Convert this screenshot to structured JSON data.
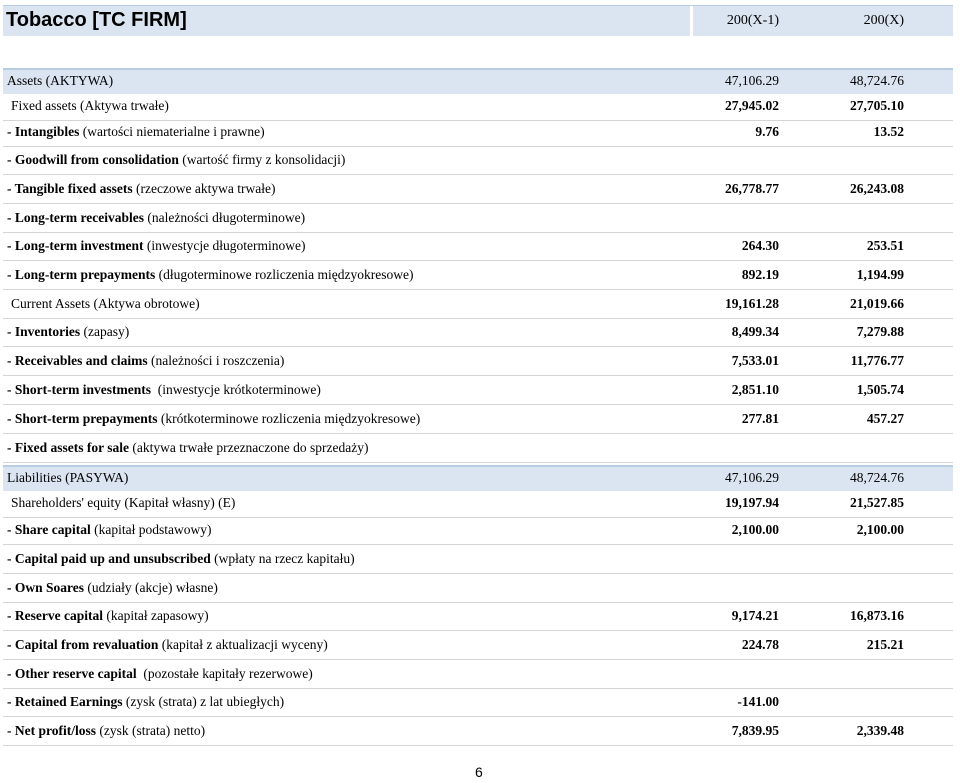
{
  "header": {
    "title": "Tobacco [TC FIRM]",
    "year_prev": "200(X-1)",
    "year_curr": "200(X)"
  },
  "rows": [
    {
      "prefix": "",
      "bold": "",
      "rest": "Assets (AKTYWA)",
      "v1": "47,106.29",
      "v2": "48,724.76"
    },
    {
      "prefix": "",
      "bold": "",
      "rest": "Fixed assets (Aktywa trwałe)",
      "v1": "27,945.02",
      "v2": "27,705.10"
    },
    {
      "prefix": "- ",
      "bold": "Intangibles",
      "rest": " (wartości niematerialne i prawne)",
      "v1": "9.76",
      "v2": "13.52"
    },
    {
      "prefix": "- ",
      "bold": "Goodwill from consolidation",
      "rest": " (wartość firmy z konsolidacji)",
      "v1": "",
      "v2": ""
    },
    {
      "prefix": "- ",
      "bold": "Tangible fixed assets",
      "rest": " (rzeczowe aktywa trwałe)",
      "v1": "26,778.77",
      "v2": "26,243.08"
    },
    {
      "prefix": "- ",
      "bold": "Long-term receivables",
      "rest": " (należności długoterminowe)",
      "v1": "",
      "v2": ""
    },
    {
      "prefix": "- ",
      "bold": "Long-term investment",
      "rest": " (inwestycje długoterminowe)",
      "v1": "264.30",
      "v2": "253.51"
    },
    {
      "prefix": "- ",
      "bold": "Long-term prepayments",
      "rest": " (długoterminowe rozliczenia międzyokresowe)",
      "v1": "892.19",
      "v2": "1,194.99"
    },
    {
      "prefix": "",
      "bold": "",
      "rest": "Current Assets (Aktywa obrotowe)",
      "v1": "19,161.28",
      "v2": "21,019.66"
    },
    {
      "prefix": "- ",
      "bold": "Inventories",
      "rest": " (zapasy)",
      "v1": "8,499.34",
      "v2": "7,279.88"
    },
    {
      "prefix": "- ",
      "bold": "Receivables and claims",
      "rest": " (należności i roszczenia)",
      "v1": "7,533.01",
      "v2": "11,776.77"
    },
    {
      "prefix": "- ",
      "bold": "Short-term investments",
      "rest": "  (inwestycje krótkoterminowe)",
      "v1": "2,851.10",
      "v2": "1,505.74"
    },
    {
      "prefix": "- ",
      "bold": "Short-term prepayments",
      "rest": " (krótkoterminowe rozliczenia międzyokresowe)",
      "v1": "277.81",
      "v2": "457.27"
    },
    {
      "prefix": "- ",
      "bold": "Fixed assets for sale",
      "rest": " (aktywa trwałe przeznaczone do sprzedaży)",
      "v1": "",
      "v2": ""
    },
    {
      "prefix": "",
      "bold": "",
      "rest": "Liabilities (PASYWA)",
      "v1": "47,106.29",
      "v2": "48,724.76"
    },
    {
      "prefix": "",
      "bold": "",
      "rest": "Shareholders' equity (Kapitał własny) (E)",
      "v1": "19,197.94",
      "v2": "21,527.85"
    },
    {
      "prefix": "- ",
      "bold": "Share capital",
      "rest": " (kapitał podstawowy)",
      "v1": "2,100.00",
      "v2": "2,100.00"
    },
    {
      "prefix": "- ",
      "bold": "Capital paid up and unsubscribed",
      "rest": " (wpłaty na rzecz kapitału)",
      "v1": "",
      "v2": ""
    },
    {
      "prefix": "- ",
      "bold": "Own Soares",
      "rest": " (udziały (akcje) własne)",
      "v1": "",
      "v2": ""
    },
    {
      "prefix": "- ",
      "bold": "Reserve capital",
      "rest": " (kapitał zapasowy)",
      "v1": "9,174.21",
      "v2": "16,873.16"
    },
    {
      "prefix": "- ",
      "bold": "Capital from revaluation",
      "rest": " (kapitał z aktualizacji wyceny)",
      "v1": "224.78",
      "v2": "215.21"
    },
    {
      "prefix": "- ",
      "bold": "Other reserve capital",
      "rest": "  (pozostałe kapitały rezerwowe)",
      "v1": "",
      "v2": ""
    },
    {
      "prefix": "- ",
      "bold": "Retained Earnings",
      "rest": " (zysk (strata) z lat ubiegłych)",
      "v1": "-141.00",
      "v2": ""
    },
    {
      "prefix": "- ",
      "bold": "Net profit/loss",
      "rest": " (zysk (strata) netto)",
      "v1": "7,839.95",
      "v2": "2,339.48"
    }
  ],
  "page_number": "6"
}
